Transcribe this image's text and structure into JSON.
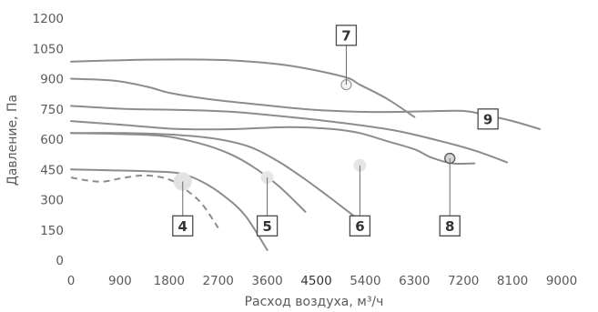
{
  "chart_data": {
    "type": "line",
    "title": "",
    "xlabel": "Расход воздуха, м³/ч",
    "ylabel": "Давление, Па",
    "xlim": [
      0,
      9000
    ],
    "ylim": [
      0,
      1200
    ],
    "x_ticks": [
      0,
      900,
      1800,
      2700,
      3600,
      4500,
      5400,
      6300,
      7200,
      8100,
      9000
    ],
    "y_ticks": [
      0,
      150,
      300,
      450,
      600,
      750,
      900,
      1050,
      1200
    ],
    "emphasized_x_ticks": [
      4500
    ],
    "grid": false,
    "legend": "none",
    "series": [
      {
        "values": [
          [
            0,
            985
          ],
          [
            1000,
            992
          ],
          [
            2000,
            995
          ],
          [
            3000,
            990
          ],
          [
            4000,
            965
          ],
          [
            5000,
            910
          ],
          [
            5300,
            870
          ],
          [
            5800,
            800
          ],
          [
            6300,
            710
          ]
        ]
      },
      {
        "values": [
          [
            0,
            900
          ],
          [
            800,
            890
          ],
          [
            1400,
            860
          ],
          [
            1800,
            830
          ],
          [
            2500,
            800
          ],
          [
            3500,
            770
          ],
          [
            4500,
            745
          ],
          [
            5500,
            735
          ],
          [
            6500,
            738
          ],
          [
            7200,
            740
          ],
          [
            7600,
            720
          ],
          [
            8100,
            690
          ],
          [
            8600,
            650
          ]
        ]
      },
      {
        "values": [
          [
            0,
            765
          ],
          [
            1000,
            750
          ],
          [
            2000,
            745
          ],
          [
            3000,
            735
          ],
          [
            4000,
            710
          ],
          [
            5000,
            680
          ],
          [
            6000,
            640
          ],
          [
            7000,
            575
          ],
          [
            7500,
            535
          ],
          [
            8000,
            485
          ]
        ]
      },
      {
        "values": [
          [
            0,
            690
          ],
          [
            1000,
            670
          ],
          [
            2000,
            650
          ],
          [
            3000,
            650
          ],
          [
            4000,
            660
          ],
          [
            4800,
            650
          ],
          [
            5300,
            630
          ],
          [
            5800,
            590
          ],
          [
            6300,
            550
          ],
          [
            6600,
            510
          ],
          [
            7000,
            480
          ],
          [
            7400,
            480
          ]
        ]
      },
      {
        "values": [
          [
            0,
            630
          ],
          [
            1000,
            630
          ],
          [
            2000,
            620
          ],
          [
            2700,
            600
          ],
          [
            3300,
            560
          ],
          [
            3800,
            490
          ],
          [
            4300,
            400
          ],
          [
            4800,
            300
          ],
          [
            5400,
            175
          ]
        ]
      },
      {
        "values": [
          [
            0,
            630
          ],
          [
            1500,
            620
          ],
          [
            2200,
            590
          ],
          [
            2800,
            540
          ],
          [
            3300,
            470
          ],
          [
            3800,
            370
          ],
          [
            4300,
            240
          ]
        ]
      },
      {
        "values": [
          [
            0,
            450
          ],
          [
            800,
            445
          ],
          [
            1500,
            440
          ],
          [
            2000,
            430
          ],
          [
            2400,
            390
          ],
          [
            2800,
            320
          ],
          [
            3200,
            220
          ],
          [
            3600,
            50
          ]
        ]
      },
      {
        "values": [
          [
            0,
            410
          ],
          [
            300,
            395
          ],
          [
            600,
            390
          ],
          [
            1000,
            410
          ],
          [
            1400,
            420
          ],
          [
            1800,
            400
          ],
          [
            2100,
            350
          ],
          [
            2400,
            280
          ],
          [
            2700,
            160
          ]
        ],
        "dashed": true
      }
    ],
    "markers": [
      {
        "x": 2050,
        "y": 390,
        "style": "large-light"
      },
      {
        "x": 3600,
        "y": 410,
        "style": "light"
      },
      {
        "x": 5300,
        "y": 470,
        "style": "light"
      },
      {
        "x": 5050,
        "y": 870,
        "style": "ring-light"
      },
      {
        "x": 6950,
        "y": 505,
        "style": "ring-dark"
      }
    ],
    "callouts": [
      {
        "label": "4",
        "x": 2050,
        "y": 170,
        "anchor_x": 2050,
        "anchor_y": 390
      },
      {
        "label": "5",
        "x": 3600,
        "y": 170,
        "anchor_x": 3600,
        "anchor_y": 410
      },
      {
        "label": "6",
        "x": 5300,
        "y": 170,
        "anchor_x": 5300,
        "anchor_y": 470
      },
      {
        "label": "7",
        "x": 5050,
        "y": 1115,
        "anchor_x": 5050,
        "anchor_y": 870
      },
      {
        "label": "8",
        "x": 6950,
        "y": 170,
        "anchor_x": 6950,
        "anchor_y": 505
      },
      {
        "label": "9",
        "x": 7650,
        "y": 700,
        "anchor_x": 7650,
        "anchor_y": 700
      }
    ]
  }
}
